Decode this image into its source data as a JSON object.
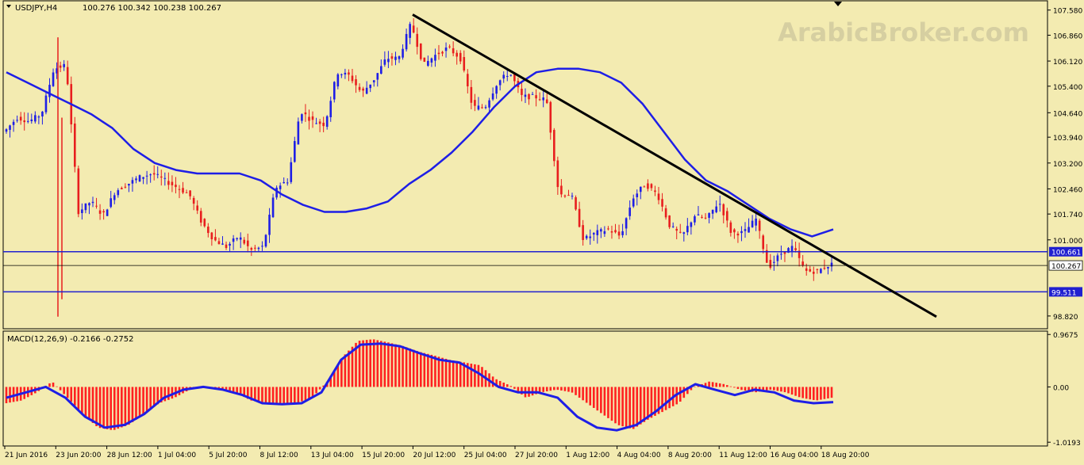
{
  "header": {
    "symbol": "USDJPY,H4",
    "ohlc": "100.276 100.342 100.238 100.267"
  },
  "watermark": "ArabicBroker.com",
  "colors": {
    "background": "#F3EBB1",
    "bull": "#1E1EE6",
    "bear": "#E81E1E",
    "ma": "#1E1EE6",
    "trendline": "#000000",
    "level": "#2020D0",
    "macd_hist": "#FF2020",
    "macd_signal": "#1E1EE6"
  },
  "chart_data": [
    {
      "type": "candlestick",
      "title": "USDJPY,H4",
      "ylim": [
        98.5,
        107.8
      ],
      "y_ticks": [
        "107.580",
        "106.860",
        "106.120",
        "105.400",
        "104.640",
        "103.940",
        "103.200",
        "102.460",
        "101.740",
        "101.000",
        "98.820"
      ],
      "x_ticks": [
        "21 Jun 2016",
        "23 Jun 20:00",
        "28 Jun 12:00",
        "1 Jul 04:00",
        "5 Jul 20:00",
        "8 Jul 12:00",
        "13 Jul 04:00",
        "15 Jul 20:00",
        "20 Jul 12:00",
        "25 Jul 04:00",
        "27 Jul 20:00",
        "1 Aug 12:00",
        "4 Aug 04:00",
        "8 Aug 20:00",
        "11 Aug 12:00",
        "16 Aug 04:00",
        "18 Aug 20:00"
      ],
      "price_path": [
        104.1,
        104.5,
        104.4,
        104.6,
        105.9,
        106.0,
        101.8,
        102.1,
        101.7,
        102.4,
        102.6,
        102.8,
        102.9,
        102.7,
        102.5,
        102.3,
        101.5,
        101.0,
        100.8,
        101.1,
        100.7,
        100.8,
        102.5,
        102.7,
        104.7,
        104.4,
        104.3,
        105.8,
        105.7,
        105.2,
        105.6,
        106.2,
        106.2,
        107.2,
        106.0,
        106.3,
        106.5,
        106.2,
        104.8,
        104.8,
        105.5,
        105.8,
        105.1,
        105.1,
        105.0,
        102.3,
        102.3,
        101.0,
        101.2,
        101.3,
        101.1,
        102.2,
        102.6,
        102.3,
        101.4,
        101.1,
        101.7,
        101.6,
        102.1,
        101.2,
        101.2,
        101.6,
        100.2,
        100.6,
        100.8,
        100.1,
        100.1,
        100.3
      ],
      "moving_average": [
        105.8,
        105.5,
        105.2,
        104.9,
        104.6,
        104.2,
        103.6,
        103.2,
        103.0,
        102.9,
        102.9,
        102.9,
        102.7,
        102.3,
        102.0,
        101.8,
        101.8,
        101.9,
        102.1,
        102.6,
        103.0,
        103.5,
        104.1,
        104.8,
        105.4,
        105.8,
        105.9,
        105.9,
        105.8,
        105.5,
        104.9,
        104.1,
        103.3,
        102.7,
        102.4,
        102.0,
        101.6,
        101.3,
        101.1,
        101.3
      ],
      "trendline": [
        107.45,
        98.8
      ],
      "levels": [
        {
          "value": 100.661,
          "label": "100.661"
        },
        {
          "value": 100.267,
          "label": "100.267"
        },
        {
          "value": 99.511,
          "label": "99.511"
        }
      ]
    },
    {
      "type": "bar",
      "title": "MACD(12,26,9) -0.2166 -0.2752",
      "ylim": [
        -1.06,
        1.0
      ],
      "y_ticks": [
        "0.9675",
        "0.00",
        "-1.0193"
      ],
      "histogram": [
        -0.3,
        -0.25,
        -0.1,
        0.1,
        -0.2,
        -0.5,
        -0.75,
        -0.8,
        -0.7,
        -0.5,
        -0.3,
        -0.2,
        -0.05,
        0.0,
        -0.02,
        -0.1,
        -0.25,
        -0.3,
        -0.32,
        -0.3,
        -0.2,
        0.1,
        0.55,
        0.85,
        0.88,
        0.82,
        0.75,
        0.65,
        0.58,
        0.5,
        0.45,
        0.4,
        0.15,
        0.02,
        -0.2,
        -0.1,
        -0.05,
        -0.1,
        -0.3,
        -0.5,
        -0.7,
        -0.78,
        -0.6,
        -0.45,
        -0.3,
        0.0,
        0.1,
        0.05,
        -0.05,
        -0.1,
        -0.05,
        -0.1,
        -0.2,
        -0.25,
        -0.2
      ],
      "signal": [
        -0.2,
        -0.1,
        0.0,
        -0.2,
        -0.55,
        -0.75,
        -0.7,
        -0.5,
        -0.2,
        -0.05,
        0.0,
        -0.05,
        -0.15,
        -0.3,
        -0.32,
        -0.3,
        -0.1,
        0.5,
        0.78,
        0.8,
        0.75,
        0.62,
        0.5,
        0.45,
        0.25,
        0.0,
        -0.1,
        -0.1,
        -0.2,
        -0.55,
        -0.75,
        -0.8,
        -0.7,
        -0.45,
        -0.15,
        0.05,
        -0.05,
        -0.15,
        -0.05,
        -0.1,
        -0.25,
        -0.3,
        -0.28
      ]
    }
  ]
}
